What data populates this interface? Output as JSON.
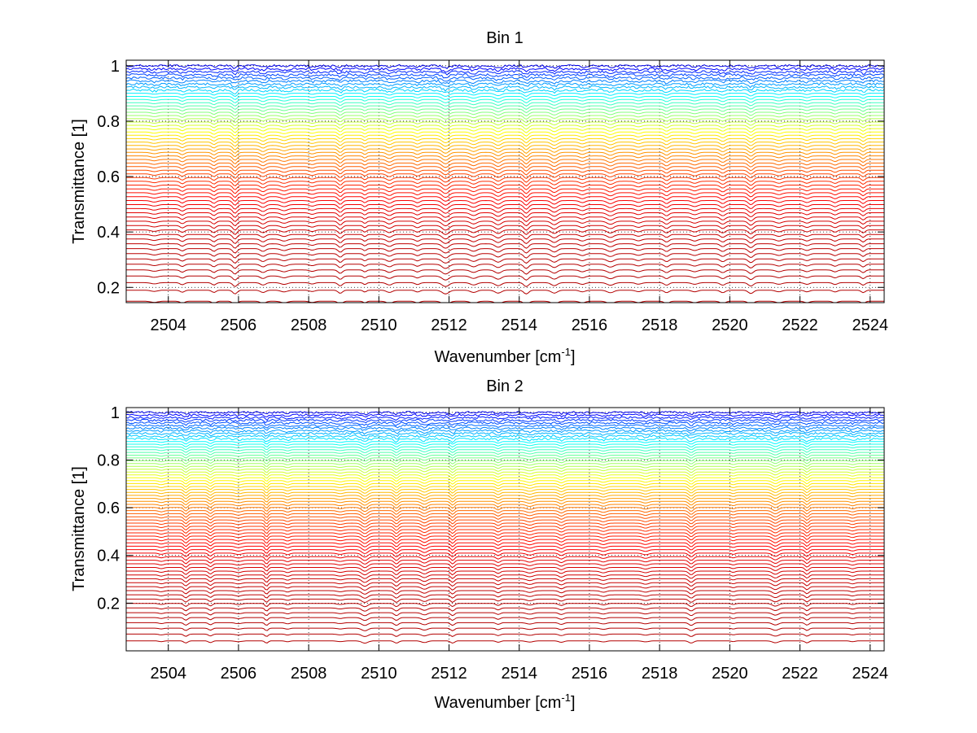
{
  "chart_data": [
    {
      "type": "line",
      "title": "Bin 1",
      "xlabel": "Wavenumber [cm",
      "xlabel_sup": "-1",
      "xlabel_tail": "]",
      "ylabel": "Transmittance [1]",
      "xlim": [
        2502.8,
        2524.4
      ],
      "ylim": [
        0.145,
        1.02
      ],
      "xticks": [
        "2504",
        "2506",
        "2508",
        "2510",
        "2512",
        "2514",
        "2516",
        "2518",
        "2520",
        "2522",
        "2524"
      ],
      "yticks": [
        "0.2",
        "0.4",
        "0.6",
        "0.8",
        "1"
      ],
      "grid": "dotted",
      "colormap": "jet",
      "series_count": 60,
      "transmittance_range": [
        0.15,
        1.0
      ],
      "absorption_lines_cm-1": [
        2503.6,
        2504.4,
        2505.3,
        2505.9,
        2506.7,
        2507.3,
        2508.1,
        2508.9,
        2509.6,
        2510.3,
        2511.1,
        2511.9,
        2512.7,
        2513.4,
        2514.2,
        2515.0,
        2515.8,
        2516.6,
        2517.4,
        2518.2,
        2519.0,
        2519.8,
        2520.6,
        2521.4,
        2522.2,
        2523.0,
        2523.8
      ],
      "colors": {
        "low_transmittance": "#7f0000",
        "mid": "#ff8000",
        "high_transmittance": "#00008f"
      }
    },
    {
      "type": "line",
      "title": "Bin 2",
      "xlabel": "Wavenumber [cm",
      "xlabel_sup": "-1",
      "xlabel_tail": "]",
      "ylabel": "Transmittance [1]",
      "xlim": [
        2502.8,
        2524.4
      ],
      "ylim": [
        0.0,
        1.02
      ],
      "xticks": [
        "2504",
        "2506",
        "2508",
        "2510",
        "2512",
        "2514",
        "2516",
        "2518",
        "2520",
        "2522",
        "2524"
      ],
      "yticks": [
        "0.2",
        "0.4",
        "0.6",
        "0.8",
        "1"
      ],
      "grid": "dotted",
      "colormap": "jet",
      "series_count": 70,
      "transmittance_range": [
        0.0,
        1.0
      ],
      "absorption_lines_cm-1": [
        2503.8,
        2504.5,
        2505.2,
        2506.0,
        2506.8,
        2507.4,
        2508.9,
        2509.6,
        2510.5,
        2511.3,
        2512.1,
        2513.4,
        2514.3,
        2515.2,
        2516.4,
        2517.6,
        2518.9,
        2520.1,
        2521.3,
        2522.2,
        2523.5
      ],
      "colors": {
        "low_transmittance": "#7f0000",
        "mid": "#ff8000",
        "high_transmittance": "#00008f"
      }
    }
  ]
}
